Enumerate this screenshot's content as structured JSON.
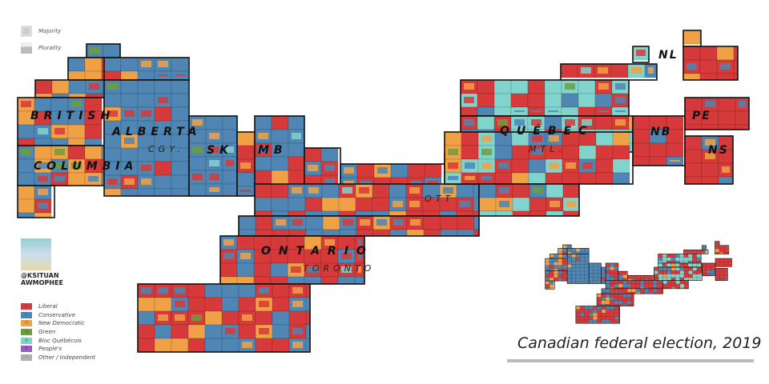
{
  "title": "Canadian federal election, 2019",
  "key": {
    "majority": "Majority",
    "plurality": "Plurality"
  },
  "legend": [
    {
      "code": "L",
      "label": "Liberal",
      "color": "#d63a3a"
    },
    {
      "code": "C",
      "label": "Conservative",
      "color": "#4f86b3"
    },
    {
      "code": "N",
      "label": "New Democratic",
      "color": "#f0a146"
    },
    {
      "code": "G",
      "label": "Green",
      "color": "#6e9e3c"
    },
    {
      "code": "B",
      "label": "Bloc Québécois",
      "color": "#80d4cc"
    },
    {
      "code": "P",
      "label": "People's",
      "color": "#9a5cc2"
    },
    {
      "code": "I",
      "label": "Other / Independent",
      "color": "#b0b0b0"
    }
  ],
  "regions": {
    "bc1": "BRITISH",
    "bc2": "COLUMBIA",
    "ab": "ALBERTA",
    "cgy": "CGY.",
    "sk": "SK",
    "mb": "MB",
    "on": "ONTARIO",
    "tor": "TORONTO",
    "ott": "OTT",
    "qc": "QUÉBEC",
    "mtl": "MTL.",
    "nb": "NB",
    "ns": "NS",
    "pe": "PE",
    "nl": "NL"
  },
  "logo": {
    "line1": "@KSITUAN",
    "line2": "AWMOPHEE"
  }
}
